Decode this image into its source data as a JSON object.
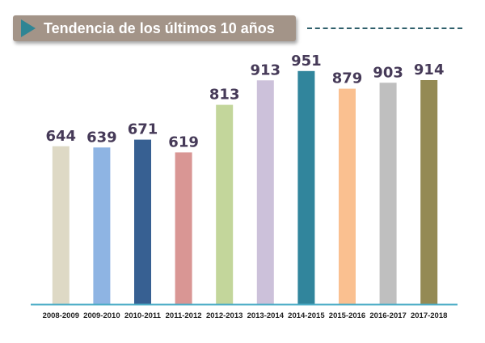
{
  "header": {
    "title": "Tendencia de los últimos 10 años",
    "arrow_icon": "play-triangle-icon",
    "banner_color": "#a39488",
    "arrow_color": "#2f8594"
  },
  "chart_data": {
    "type": "bar",
    "title": "Tendencia de los últimos 10 años",
    "categories": [
      "2008-2009",
      "2009-2010",
      "2010-2011",
      "2011-2012",
      "2012-2013",
      "2013-2014",
      "2014-2015",
      "2015-2016",
      "2016-2017",
      "2017-2018"
    ],
    "values": [
      644,
      639,
      671,
      619,
      813,
      913,
      951,
      879,
      903,
      914
    ],
    "colors": [
      "#ded9c5",
      "#8eb4e3",
      "#376092",
      "#d99694",
      "#c3d69b",
      "#ccc1da",
      "#31859c",
      "#fac090",
      "#bfbfbf",
      "#948a54"
    ],
    "xlabel": "",
    "ylabel": "",
    "ylim": [
      0,
      970
    ],
    "grid": false,
    "legend": "none",
    "data_labels": true,
    "baseline_color": "#4bacc6"
  }
}
